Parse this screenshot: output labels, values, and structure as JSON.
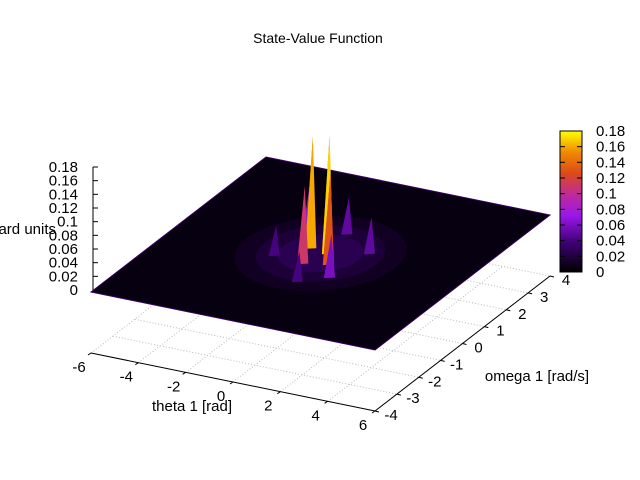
{
  "chart_data": {
    "type": "surface",
    "title": "State-Value Function",
    "xlabel": "theta 1 [rad]",
    "ylabel": "omega 1 [rad/s]",
    "zlabel": "reward units",
    "xlim": [
      -6,
      6
    ],
    "ylim": [
      -4,
      4
    ],
    "zlim": [
      0,
      0.18
    ],
    "x_ticks": [
      "-6",
      "-4",
      "-2",
      "0",
      "2",
      "4",
      "6"
    ],
    "y_ticks": [
      "-4",
      "-3",
      "-2",
      "-1",
      "0",
      "1",
      "2",
      "3",
      "4"
    ],
    "z_ticks": [
      "0",
      "0.02",
      "0.04",
      "0.06",
      "0.08",
      "0.1",
      "0.12",
      "0.14",
      "0.16",
      "0.18"
    ],
    "colorbar": {
      "ticks": [
        "0",
        "0.02",
        "0.04",
        "0.06",
        "0.08",
        "0.1",
        "0.12",
        "0.14",
        "0.16",
        "0.18"
      ],
      "range": [
        0,
        0.18
      ]
    },
    "peaks": [
      {
        "theta": -0.6,
        "omega": 0.3,
        "value": 0.16
      },
      {
        "theta": 0.2,
        "omega": 0.2,
        "value": 0.17
      },
      {
        "theta": 0.7,
        "omega": -0.3,
        "value": 0.13
      },
      {
        "theta": -0.2,
        "omega": -0.5,
        "value": 0.11
      },
      {
        "theta": -1.2,
        "omega": 0.8,
        "value": 0.07
      },
      {
        "theta": 1.3,
        "omega": -0.9,
        "value": 0.06
      },
      {
        "theta": -1.5,
        "omega": -0.4,
        "value": 0.04
      },
      {
        "theta": 1.6,
        "omega": 0.6,
        "value": 0.05
      },
      {
        "theta": 0.0,
        "omega": 1.3,
        "value": 0.05
      },
      {
        "theta": 0.4,
        "omega": -1.4,
        "value": 0.04
      }
    ],
    "grid": true
  }
}
